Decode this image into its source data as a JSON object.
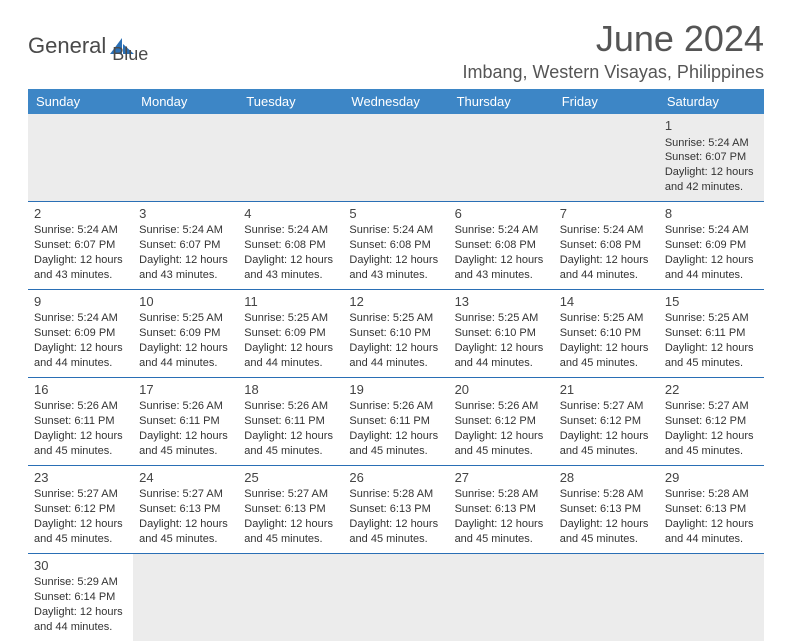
{
  "brand": {
    "name1": "General",
    "name2": "Blue"
  },
  "title": "June 2024",
  "location": "Imbang, Western Visayas, Philippines",
  "colors": {
    "header_bg": "#3d86c6",
    "header_text": "#ffffff",
    "border": "#2a6fb5",
    "empty_bg": "#ececec",
    "text": "#333333",
    "title_text": "#555555"
  },
  "day_headers": [
    "Sunday",
    "Monday",
    "Tuesday",
    "Wednesday",
    "Thursday",
    "Friday",
    "Saturday"
  ],
  "weeks": [
    [
      null,
      null,
      null,
      null,
      null,
      null,
      {
        "n": "1",
        "sr": "Sunrise: 5:24 AM",
        "ss": "Sunset: 6:07 PM",
        "dl1": "Daylight: 12 hours",
        "dl2": "and 42 minutes."
      }
    ],
    [
      {
        "n": "2",
        "sr": "Sunrise: 5:24 AM",
        "ss": "Sunset: 6:07 PM",
        "dl1": "Daylight: 12 hours",
        "dl2": "and 43 minutes."
      },
      {
        "n": "3",
        "sr": "Sunrise: 5:24 AM",
        "ss": "Sunset: 6:07 PM",
        "dl1": "Daylight: 12 hours",
        "dl2": "and 43 minutes."
      },
      {
        "n": "4",
        "sr": "Sunrise: 5:24 AM",
        "ss": "Sunset: 6:08 PM",
        "dl1": "Daylight: 12 hours",
        "dl2": "and 43 minutes."
      },
      {
        "n": "5",
        "sr": "Sunrise: 5:24 AM",
        "ss": "Sunset: 6:08 PM",
        "dl1": "Daylight: 12 hours",
        "dl2": "and 43 minutes."
      },
      {
        "n": "6",
        "sr": "Sunrise: 5:24 AM",
        "ss": "Sunset: 6:08 PM",
        "dl1": "Daylight: 12 hours",
        "dl2": "and 43 minutes."
      },
      {
        "n": "7",
        "sr": "Sunrise: 5:24 AM",
        "ss": "Sunset: 6:08 PM",
        "dl1": "Daylight: 12 hours",
        "dl2": "and 44 minutes."
      },
      {
        "n": "8",
        "sr": "Sunrise: 5:24 AM",
        "ss": "Sunset: 6:09 PM",
        "dl1": "Daylight: 12 hours",
        "dl2": "and 44 minutes."
      }
    ],
    [
      {
        "n": "9",
        "sr": "Sunrise: 5:24 AM",
        "ss": "Sunset: 6:09 PM",
        "dl1": "Daylight: 12 hours",
        "dl2": "and 44 minutes."
      },
      {
        "n": "10",
        "sr": "Sunrise: 5:25 AM",
        "ss": "Sunset: 6:09 PM",
        "dl1": "Daylight: 12 hours",
        "dl2": "and 44 minutes."
      },
      {
        "n": "11",
        "sr": "Sunrise: 5:25 AM",
        "ss": "Sunset: 6:09 PM",
        "dl1": "Daylight: 12 hours",
        "dl2": "and 44 minutes."
      },
      {
        "n": "12",
        "sr": "Sunrise: 5:25 AM",
        "ss": "Sunset: 6:10 PM",
        "dl1": "Daylight: 12 hours",
        "dl2": "and 44 minutes."
      },
      {
        "n": "13",
        "sr": "Sunrise: 5:25 AM",
        "ss": "Sunset: 6:10 PM",
        "dl1": "Daylight: 12 hours",
        "dl2": "and 44 minutes."
      },
      {
        "n": "14",
        "sr": "Sunrise: 5:25 AM",
        "ss": "Sunset: 6:10 PM",
        "dl1": "Daylight: 12 hours",
        "dl2": "and 45 minutes."
      },
      {
        "n": "15",
        "sr": "Sunrise: 5:25 AM",
        "ss": "Sunset: 6:11 PM",
        "dl1": "Daylight: 12 hours",
        "dl2": "and 45 minutes."
      }
    ],
    [
      {
        "n": "16",
        "sr": "Sunrise: 5:26 AM",
        "ss": "Sunset: 6:11 PM",
        "dl1": "Daylight: 12 hours",
        "dl2": "and 45 minutes."
      },
      {
        "n": "17",
        "sr": "Sunrise: 5:26 AM",
        "ss": "Sunset: 6:11 PM",
        "dl1": "Daylight: 12 hours",
        "dl2": "and 45 minutes."
      },
      {
        "n": "18",
        "sr": "Sunrise: 5:26 AM",
        "ss": "Sunset: 6:11 PM",
        "dl1": "Daylight: 12 hours",
        "dl2": "and 45 minutes."
      },
      {
        "n": "19",
        "sr": "Sunrise: 5:26 AM",
        "ss": "Sunset: 6:11 PM",
        "dl1": "Daylight: 12 hours",
        "dl2": "and 45 minutes."
      },
      {
        "n": "20",
        "sr": "Sunrise: 5:26 AM",
        "ss": "Sunset: 6:12 PM",
        "dl1": "Daylight: 12 hours",
        "dl2": "and 45 minutes."
      },
      {
        "n": "21",
        "sr": "Sunrise: 5:27 AM",
        "ss": "Sunset: 6:12 PM",
        "dl1": "Daylight: 12 hours",
        "dl2": "and 45 minutes."
      },
      {
        "n": "22",
        "sr": "Sunrise: 5:27 AM",
        "ss": "Sunset: 6:12 PM",
        "dl1": "Daylight: 12 hours",
        "dl2": "and 45 minutes."
      }
    ],
    [
      {
        "n": "23",
        "sr": "Sunrise: 5:27 AM",
        "ss": "Sunset: 6:12 PM",
        "dl1": "Daylight: 12 hours",
        "dl2": "and 45 minutes."
      },
      {
        "n": "24",
        "sr": "Sunrise: 5:27 AM",
        "ss": "Sunset: 6:13 PM",
        "dl1": "Daylight: 12 hours",
        "dl2": "and 45 minutes."
      },
      {
        "n": "25",
        "sr": "Sunrise: 5:27 AM",
        "ss": "Sunset: 6:13 PM",
        "dl1": "Daylight: 12 hours",
        "dl2": "and 45 minutes."
      },
      {
        "n": "26",
        "sr": "Sunrise: 5:28 AM",
        "ss": "Sunset: 6:13 PM",
        "dl1": "Daylight: 12 hours",
        "dl2": "and 45 minutes."
      },
      {
        "n": "27",
        "sr": "Sunrise: 5:28 AM",
        "ss": "Sunset: 6:13 PM",
        "dl1": "Daylight: 12 hours",
        "dl2": "and 45 minutes."
      },
      {
        "n": "28",
        "sr": "Sunrise: 5:28 AM",
        "ss": "Sunset: 6:13 PM",
        "dl1": "Daylight: 12 hours",
        "dl2": "and 45 minutes."
      },
      {
        "n": "29",
        "sr": "Sunrise: 5:28 AM",
        "ss": "Sunset: 6:13 PM",
        "dl1": "Daylight: 12 hours",
        "dl2": "and 44 minutes."
      }
    ],
    [
      {
        "n": "30",
        "sr": "Sunrise: 5:29 AM",
        "ss": "Sunset: 6:14 PM",
        "dl1": "Daylight: 12 hours",
        "dl2": "and 44 minutes."
      },
      null,
      null,
      null,
      null,
      null,
      null
    ]
  ]
}
